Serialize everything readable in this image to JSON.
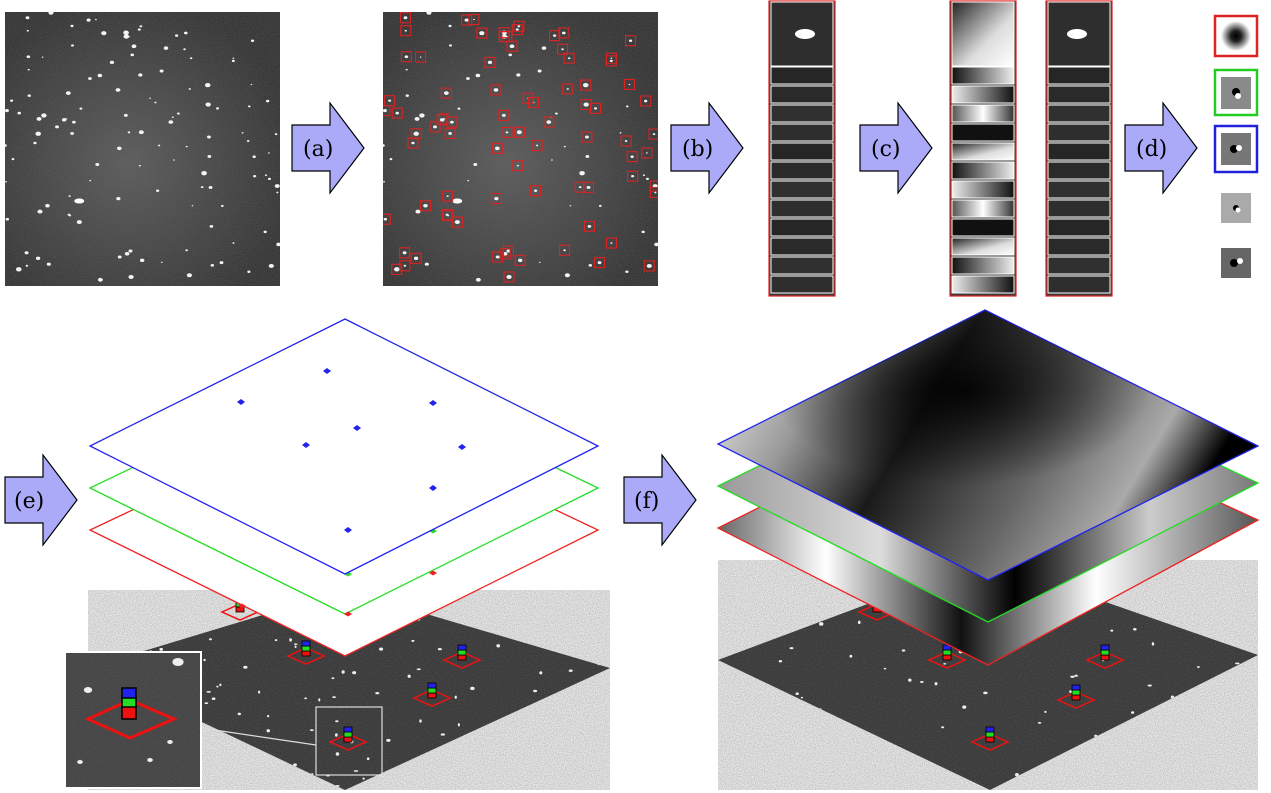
{
  "steps": [
    {
      "label": "(a)"
    },
    {
      "label": "(b)"
    },
    {
      "label": "(c)"
    },
    {
      "label": "(d)"
    },
    {
      "label": "(e)"
    },
    {
      "label": "(f)"
    }
  ],
  "colors": {
    "arrow_fill": "#aaaaf8",
    "box_red": "#dd2222",
    "layer_red": "#ee2222",
    "layer_green": "#22dd22",
    "layer_blue": "#2222ee"
  },
  "component_frames": [
    "red",
    "green",
    "blue",
    "none",
    "none"
  ]
}
